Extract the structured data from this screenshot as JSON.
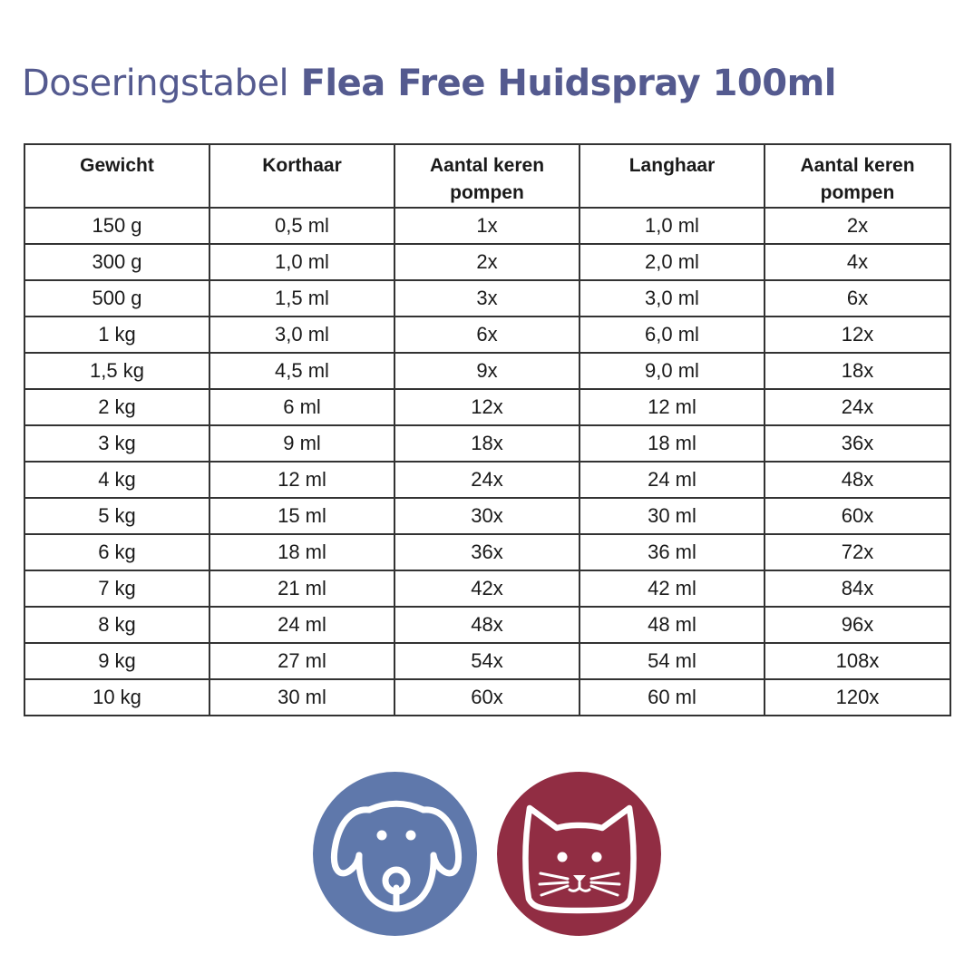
{
  "title": {
    "prefix": "Doseringstabel",
    "product": "Flea Free Huidspray 100ml",
    "color": "#545a8f"
  },
  "table": {
    "headers": [
      "Gewicht",
      "Korthaar",
      "Aantal keren pompen",
      "Langhaar",
      "Aantal keren pompen"
    ],
    "rows": [
      [
        "150 g",
        "0,5 ml",
        "1x",
        "1,0 ml",
        "2x"
      ],
      [
        "300 g",
        "1,0 ml",
        "2x",
        "2,0 ml",
        "4x"
      ],
      [
        "500 g",
        "1,5 ml",
        "3x",
        "3,0 ml",
        "6x"
      ],
      [
        "1 kg",
        "3,0 ml",
        "6x",
        "6,0 ml",
        "12x"
      ],
      [
        "1,5 kg",
        "4,5 ml",
        "9x",
        "9,0 ml",
        "18x"
      ],
      [
        "2 kg",
        "6 ml",
        "12x",
        "12 ml",
        "24x"
      ],
      [
        "3 kg",
        "9 ml",
        "18x",
        "18 ml",
        "36x"
      ],
      [
        "4 kg",
        "12 ml",
        "24x",
        "24 ml",
        "48x"
      ],
      [
        "5 kg",
        "15 ml",
        "30x",
        "30 ml",
        "60x"
      ],
      [
        "6 kg",
        "18 ml",
        "36x",
        "36 ml",
        "72x"
      ],
      [
        "7 kg",
        "21 ml",
        "42x",
        "42 ml",
        "84x"
      ],
      [
        "8 kg",
        "24 ml",
        "48x",
        "48 ml",
        "96x"
      ],
      [
        "9 kg",
        "27 ml",
        "54x",
        "54 ml",
        "108x"
      ],
      [
        "10 kg",
        "30 ml",
        "60x",
        "60 ml",
        "120x"
      ]
    ]
  },
  "icons": {
    "dog": {
      "name": "dog-icon",
      "color": "#5f78ab"
    },
    "cat": {
      "name": "cat-icon",
      "color": "#912d43"
    }
  }
}
